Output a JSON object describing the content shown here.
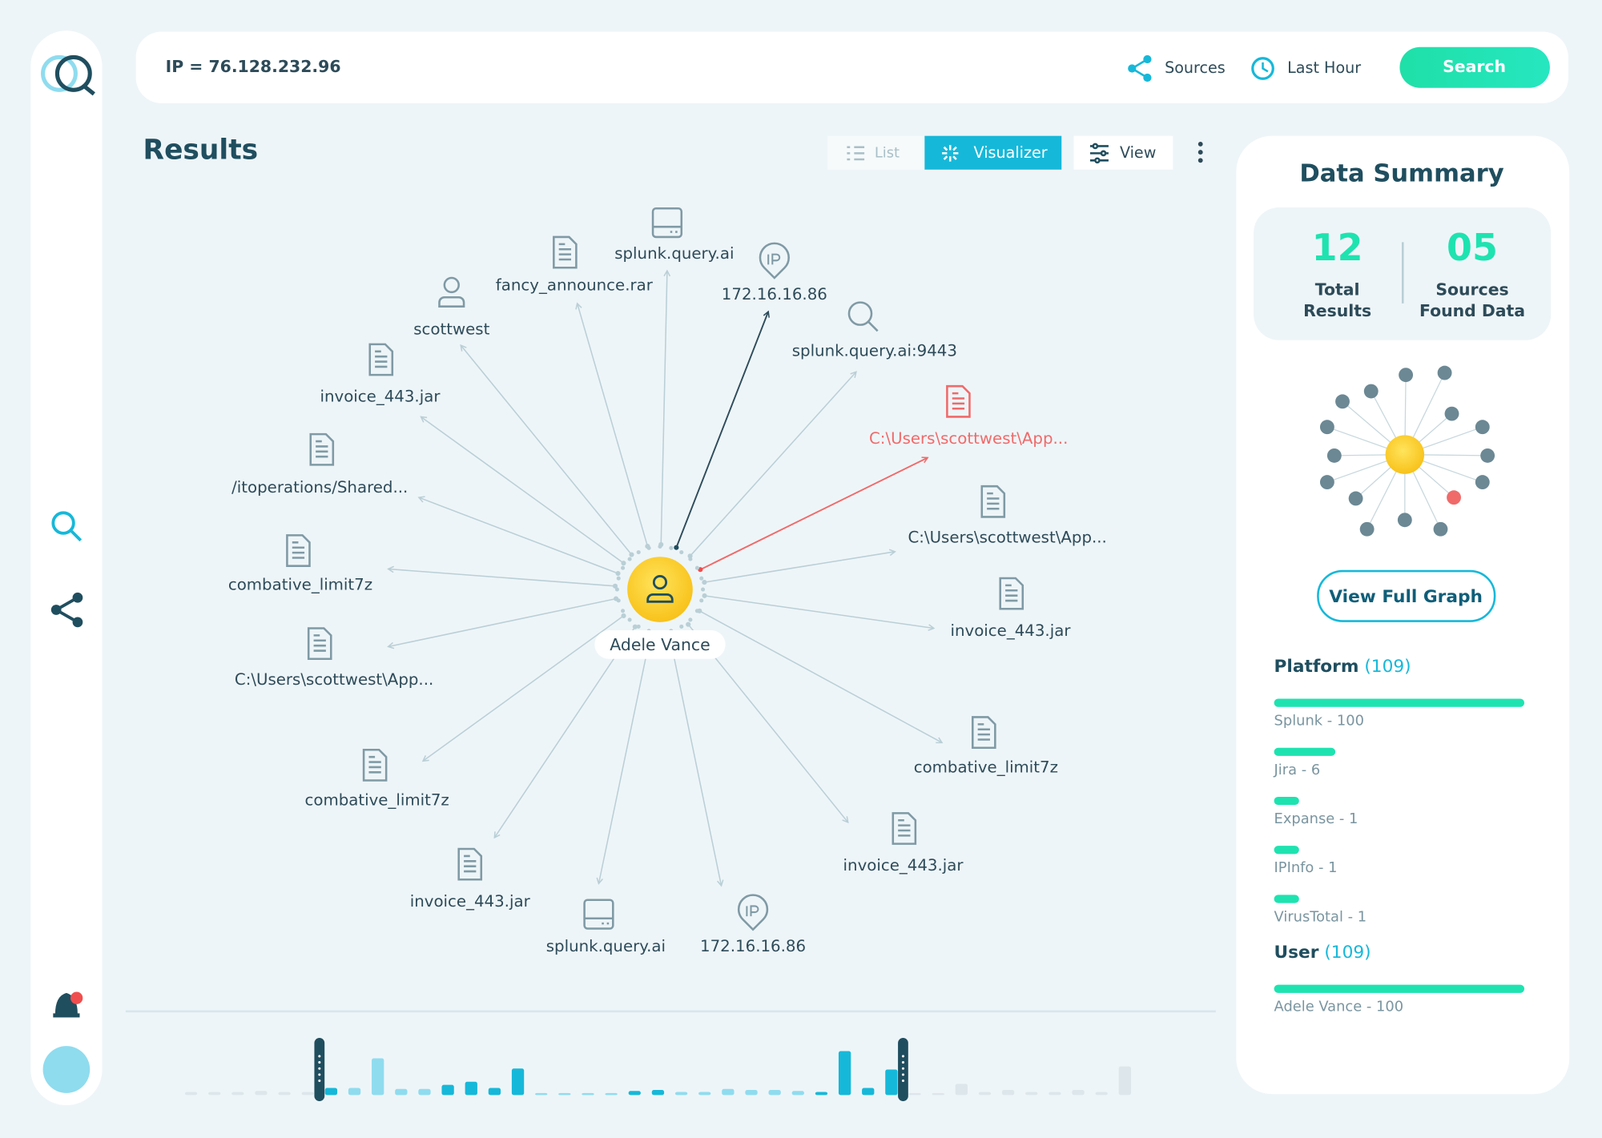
{
  "search": {
    "query": "IP = 76.128.232.96",
    "sources": "Sources",
    "time": "Last Hour",
    "button": "Search"
  },
  "results": {
    "title": "Results",
    "tabs": [
      "List",
      "Visualizer",
      "View"
    ]
  },
  "graph": {
    "center": "Adele Vance",
    "nodes": [
      "splunk.query.ai",
      "172.16.16.86",
      "splunk.query.ai:9443",
      "C:\\Users\\scottwest\\App...",
      "C:\\Users\\scottwest\\App...",
      "invoice_443.jar",
      "combative_limit7z",
      "invoice_443.jar",
      "172.16.16.86",
      "splunk.query.ai",
      "invoice_443.jar",
      "combative_limit7z",
      "C:\\Users\\scottwest\\App...",
      "combative_limit7z",
      "/itoperations/Shared...",
      "invoice_443.jar",
      "scottwest",
      "fancy_announce.rar"
    ]
  },
  "timeline": {
    "values": [
      3,
      3,
      3,
      4,
      3,
      3,
      7,
      7,
      36,
      6,
      6,
      10,
      13,
      7,
      26,
      2,
      2,
      2,
      2,
      4,
      5,
      3,
      3,
      6,
      5,
      5,
      4,
      3,
      43,
      7,
      25,
      2,
      2,
      11,
      3,
      5,
      3,
      3,
      5,
      3,
      28
    ],
    "colors": [
      "#dde6ea",
      "#dde6ea",
      "#dde6ea",
      "#dde6ea",
      "#dde6ea",
      "#dde6ea",
      "#16b8d9",
      "#8fdcef",
      "#8fdcef",
      "#8fdcef",
      "#8fdcef",
      "#16b8d9",
      "#16b8d9",
      "#16b8d9",
      "#16b8d9",
      "#8fdcef",
      "#8fdcef",
      "#8fdcef",
      "#8fdcef",
      "#16b8d9",
      "#16b8d9",
      "#8fdcef",
      "#8fdcef",
      "#8fdcef",
      "#8fdcef",
      "#8fdcef",
      "#8fdcef",
      "#16b8d9",
      "#16b8d9",
      "#16b8d9",
      "#16b8d9",
      "#dde6ea",
      "#dde6ea",
      "#dde6ea",
      "#dde6ea",
      "#dde6ea",
      "#dde6ea",
      "#dde6ea",
      "#dde6ea",
      "#dde6ea",
      "#dde6ea"
    ]
  },
  "summary": {
    "title": "Data Summary",
    "stats": [
      {
        "value": "12",
        "label": [
          "Total",
          "Results"
        ]
      },
      {
        "value": "05",
        "label": [
          "Sources",
          "Found Data"
        ]
      }
    ],
    "button": "View Full Graph",
    "groups": [
      {
        "name": "Platform",
        "count": "(109)",
        "items": [
          {
            "label": "Splunk - 100",
            "value": 100
          },
          {
            "label": "Jira - 6",
            "value": 6
          },
          {
            "label": "Expanse - 1",
            "value": 1
          },
          {
            "label": "IPInfo - 1",
            "value": 1
          },
          {
            "label": "VirusTotal - 1",
            "value": 1
          }
        ]
      },
      {
        "name": "User",
        "count": "(109)",
        "items": [
          {
            "label": "Adele Vance - 100",
            "value": 100
          }
        ]
      }
    ]
  }
}
